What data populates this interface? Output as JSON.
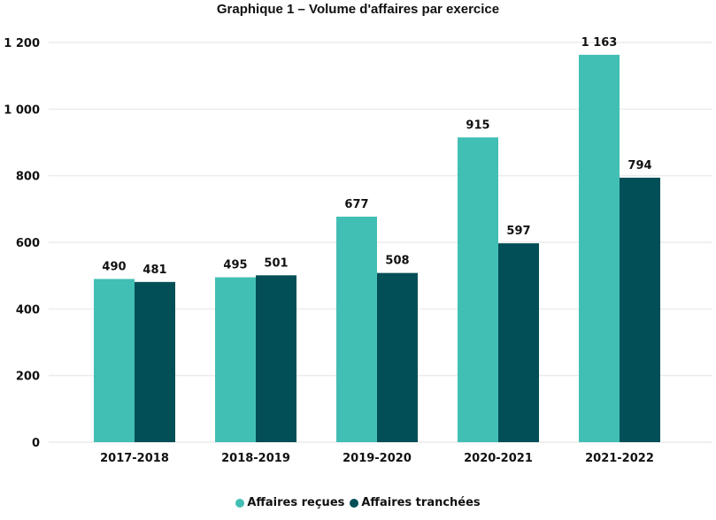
{
  "chart_data": {
    "type": "bar",
    "title": "Graphique 1 – Volume d'affaires par exercice",
    "xlabel": "",
    "ylabel": "",
    "categories": [
      "2017-2018",
      "2018-2019",
      "2019-2020",
      "2020-2021",
      "2021-2022"
    ],
    "series": [
      {
        "name": "Affaires reçues",
        "color": "#42BFB4",
        "values": [
          490,
          495,
          677,
          915,
          1163
        ],
        "labels": [
          "490",
          "495",
          "677",
          "915",
          "1 163"
        ]
      },
      {
        "name": "Affaires tranchées",
        "color": "#034F57",
        "values": [
          481,
          501,
          508,
          597,
          794
        ],
        "labels": [
          "481",
          "501",
          "508",
          "597",
          "794"
        ]
      }
    ],
    "ylim": [
      0,
      1200
    ],
    "yticks": [
      0,
      200,
      400,
      600,
      800,
      1000,
      1200
    ],
    "ytick_labels": [
      "0",
      "200",
      "400",
      "600",
      "800",
      "1 000",
      "1 200"
    ],
    "grid": true,
    "legend_position": "bottom"
  }
}
